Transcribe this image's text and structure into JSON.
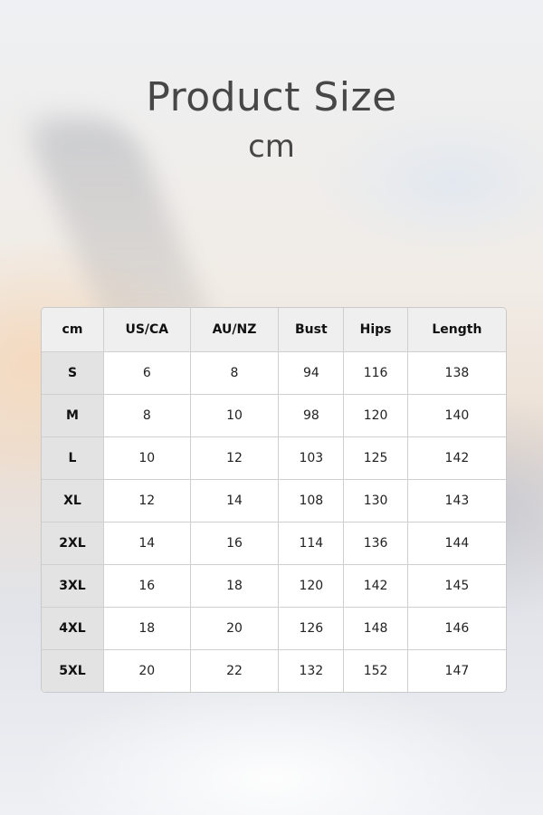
{
  "title": "Product Size",
  "unit": "cm",
  "table": {
    "headers": [
      "cm",
      "US/CA",
      "AU/NZ",
      "Bust",
      "Hips",
      "Length"
    ],
    "rows": [
      [
        "S",
        "6",
        "8",
        "94",
        "116",
        "138"
      ],
      [
        "M",
        "8",
        "10",
        "98",
        "120",
        "140"
      ],
      [
        "L",
        "10",
        "12",
        "103",
        "125",
        "142"
      ],
      [
        "XL",
        "12",
        "14",
        "108",
        "130",
        "143"
      ],
      [
        "2XL",
        "14",
        "16",
        "114",
        "136",
        "144"
      ],
      [
        "3XL",
        "16",
        "18",
        "120",
        "142",
        "145"
      ],
      [
        "4XL",
        "18",
        "20",
        "126",
        "148",
        "146"
      ],
      [
        "5XL",
        "20",
        "22",
        "132",
        "152",
        "147"
      ]
    ]
  }
}
